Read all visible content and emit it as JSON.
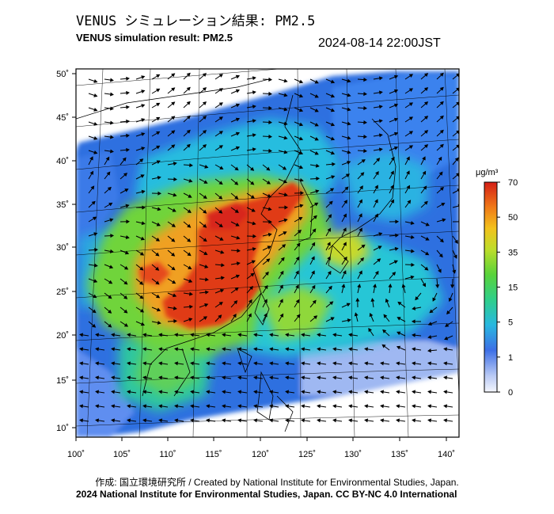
{
  "header": {
    "title_jp": "VENUS シミュレーション結果: PM2.5",
    "title_en": "VENUS simulation result: PM2.5",
    "timestamp": "2024-08-14 22:00JST"
  },
  "map": {
    "lon_ticks": [
      "100˚",
      "105˚",
      "110˚",
      "115˚",
      "120˚",
      "125˚",
      "130˚",
      "135˚",
      "140˚"
    ],
    "lat_ticks": [
      "50˚",
      "45˚",
      "40˚",
      "35˚",
      "30˚",
      "25˚",
      "20˚",
      "15˚",
      "10˚"
    ],
    "lon_range": [
      100,
      142
    ],
    "lat_range": [
      9,
      50
    ]
  },
  "colorbar": {
    "unit_label": "μg/m³",
    "tick_labels": [
      "70",
      "50",
      "35",
      "15",
      "5",
      "1",
      "0"
    ],
    "colors": [
      "#d42a1a",
      "#f07b18",
      "#f2c51c",
      "#9fd62a",
      "#2fcf6a",
      "#28c8cf",
      "#2e78e6",
      "#b0c6f3",
      "#f0f4fc"
    ]
  },
  "footer": {
    "credit": "作成: 国立環境研究所 / Created by National Institute for Environmental Studies, Japan.",
    "copyright": "2024 National Institute for Environmental Studies, Japan. CC BY-NC 4.0 International"
  }
}
